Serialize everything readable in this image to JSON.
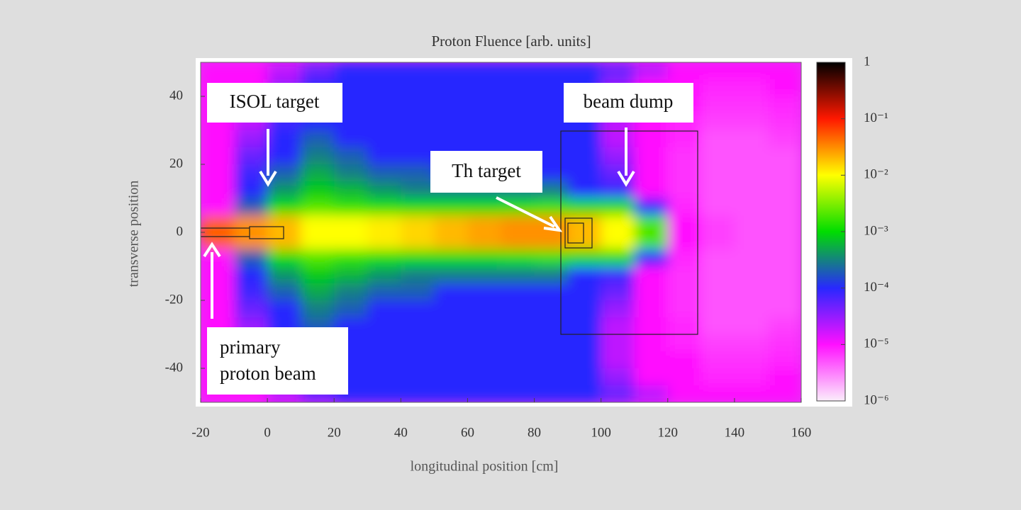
{
  "chart_data": {
    "type": "heatmap",
    "title": "Proton Fluence [arb. units]",
    "x_label": "longitudinal position [cm]",
    "y_label": "transverse position",
    "xlim": [
      -20,
      160
    ],
    "ylim": [
      -50,
      50
    ],
    "xticks": [
      -20,
      0,
      20,
      40,
      60,
      80,
      100,
      120,
      140,
      160
    ],
    "yticks": [
      -40,
      -20,
      0,
      20,
      40
    ],
    "x_edges": [
      -20,
      -10,
      0,
      10,
      20,
      30,
      40,
      50,
      60,
      70,
      80,
      90,
      100,
      110,
      120,
      130,
      140,
      150,
      160
    ],
    "y_edges": [
      50,
      45,
      40,
      35,
      30,
      25,
      20,
      15,
      10,
      5,
      0,
      -5,
      -10,
      -15,
      -20,
      -25,
      -30,
      -35,
      -40,
      -45,
      -50
    ],
    "z": [
      [
        1e-05,
        1e-05,
        2e-05,
        5e-05,
        0.0001,
        0.0001,
        0.0001,
        0.0001,
        0.0001,
        0.0001,
        0.0001,
        0.0001,
        5e-05,
        2e-05,
        1e-05,
        1e-05,
        1e-05,
        1e-05
      ],
      [
        1e-05,
        1e-05,
        3e-05,
        0.0001,
        0.0001,
        0.0001,
        0.0001,
        0.0001,
        0.0001,
        0.0001,
        0.0001,
        0.0001,
        3e-05,
        1e-05,
        1e-05,
        8e-06,
        8e-06,
        1e-05
      ],
      [
        1e-05,
        1e-05,
        5e-05,
        0.0001,
        0.0001,
        0.0001,
        0.0001,
        0.0001,
        0.0001,
        0.0001,
        0.0001,
        0.0001,
        2e-05,
        1e-05,
        1e-05,
        7e-06,
        7e-06,
        8e-06
      ],
      [
        1e-05,
        2e-05,
        8e-05,
        0.0001,
        0.0001,
        0.0001,
        0.0001,
        0.0001,
        0.0001,
        0.0001,
        0.0001,
        0.0001,
        2e-05,
        1e-05,
        8e-06,
        6e-06,
        6e-06,
        7e-06
      ],
      [
        1e-05,
        3e-05,
        0.0001,
        0.0002,
        0.0001,
        0.0001,
        0.0001,
        0.0001,
        0.0001,
        0.0001,
        0.0001,
        0.0001,
        2e-05,
        1e-05,
        8e-06,
        5e-06,
        5e-06,
        6e-06
      ],
      [
        1e-05,
        5e-05,
        0.0001,
        0.0003,
        0.0002,
        0.0001,
        0.0001,
        0.0001,
        0.0001,
        0.0001,
        0.0001,
        0.0001,
        3e-05,
        1e-05,
        7e-06,
        5e-06,
        5e-06,
        5e-06
      ],
      [
        1e-05,
        8e-05,
        0.0002,
        0.0005,
        0.0003,
        0.0002,
        0.0002,
        0.0001,
        0.0001,
        0.0001,
        0.0001,
        0.0001,
        5e-05,
        1e-05,
        7e-06,
        5e-06,
        5e-06,
        5e-06
      ],
      [
        1e-05,
        0.0001,
        0.0004,
        0.0008,
        0.0006,
        0.0004,
        0.0003,
        0.0003,
        0.0003,
        0.0003,
        0.0003,
        0.0001,
        8e-05,
        1e-05,
        7e-06,
        5e-06,
        5e-06,
        5e-06
      ],
      [
        1e-05,
        0.0002,
        0.001,
        0.002,
        0.0015,
        0.0012,
        0.001,
        0.001,
        0.001,
        0.0012,
        0.0015,
        0.001,
        0.001,
        0.0001,
        8e-06,
        5e-06,
        5e-06,
        5e-06
      ],
      [
        0.05,
        0.03,
        0.02,
        0.01,
        0.01,
        0.012,
        0.015,
        0.02,
        0.025,
        0.03,
        0.03,
        0.02,
        0.01,
        0.002,
        1e-05,
        6e-06,
        5e-06,
        5e-06
      ],
      [
        0.05,
        0.03,
        0.02,
        0.01,
        0.01,
        0.012,
        0.015,
        0.02,
        0.025,
        0.03,
        0.03,
        0.02,
        0.01,
        0.002,
        1e-05,
        6e-06,
        5e-06,
        5e-06
      ],
      [
        1e-05,
        0.0002,
        0.001,
        0.002,
        0.0015,
        0.0012,
        0.001,
        0.001,
        0.001,
        0.0012,
        0.0015,
        0.001,
        0.001,
        0.0001,
        8e-06,
        5e-06,
        5e-06,
        5e-06
      ],
      [
        1e-05,
        0.0001,
        0.0004,
        0.0008,
        0.0006,
        0.0004,
        0.0003,
        0.0003,
        0.0003,
        0.0003,
        0.0003,
        0.0001,
        8e-05,
        1e-05,
        7e-06,
        5e-06,
        5e-06,
        5e-06
      ],
      [
        1e-05,
        8e-05,
        0.0002,
        0.0005,
        0.0003,
        0.0002,
        0.0002,
        0.0001,
        0.0001,
        0.0001,
        0.0001,
        0.0001,
        5e-05,
        1e-05,
        7e-06,
        5e-06,
        5e-06,
        5e-06
      ],
      [
        1e-05,
        5e-05,
        0.0001,
        0.0003,
        0.0002,
        0.0001,
        0.0001,
        0.0001,
        0.0001,
        0.0001,
        0.0001,
        0.0001,
        3e-05,
        1e-05,
        7e-06,
        5e-06,
        5e-06,
        5e-06
      ],
      [
        1e-05,
        3e-05,
        0.0001,
        0.0002,
        0.0001,
        0.0001,
        0.0001,
        0.0001,
        0.0001,
        0.0001,
        0.0001,
        0.0001,
        2e-05,
        1e-05,
        8e-06,
        5e-06,
        5e-06,
        6e-06
      ],
      [
        1e-05,
        2e-05,
        8e-05,
        0.0001,
        0.0001,
        0.0001,
        0.0001,
        0.0001,
        0.0001,
        0.0001,
        0.0001,
        0.0001,
        2e-05,
        1e-05,
        8e-06,
        6e-06,
        6e-06,
        7e-06
      ],
      [
        1e-05,
        1e-05,
        5e-05,
        0.0001,
        0.0001,
        0.0001,
        0.0001,
        0.0001,
        0.0001,
        0.0001,
        0.0001,
        0.0001,
        2e-05,
        1e-05,
        1e-05,
        7e-06,
        7e-06,
        8e-06
      ],
      [
        1e-05,
        1e-05,
        3e-05,
        0.0001,
        0.0001,
        0.0001,
        0.0001,
        0.0001,
        0.0001,
        0.0001,
        0.0001,
        0.0001,
        3e-05,
        1e-05,
        1e-05,
        8e-06,
        8e-06,
        1e-05
      ],
      [
        1e-05,
        1e-05,
        2e-05,
        5e-05,
        0.0001,
        0.0001,
        0.0001,
        0.0001,
        0.0001,
        0.0001,
        0.0001,
        0.0001,
        5e-05,
        2e-05,
        1e-05,
        1e-05,
        1e-05,
        1e-05
      ]
    ],
    "zscale": "log",
    "zlim": [
      1e-06,
      1
    ],
    "zticks": [
      {
        "value": 1,
        "label": "1"
      },
      {
        "value": 0.1,
        "label": "10⁻¹"
      },
      {
        "value": 0.01,
        "label": "10⁻²"
      },
      {
        "value": 0.001,
        "label": "10⁻³"
      },
      {
        "value": 0.0001,
        "label": "10⁻⁴"
      },
      {
        "value": 1e-05,
        "label": "10⁻⁵"
      },
      {
        "value": 1e-06,
        "label": "10⁻⁶"
      }
    ],
    "colormap": [
      "#fbeefb",
      "#ff10ff",
      "#2828ff",
      "#00dd00",
      "#ffff00",
      "#ff1800",
      "#000000"
    ],
    "annotations": {
      "isol": "ISOL target",
      "dump": "beam dump",
      "th": "Th target",
      "beam": [
        "primary",
        "proton beam"
      ]
    }
  }
}
